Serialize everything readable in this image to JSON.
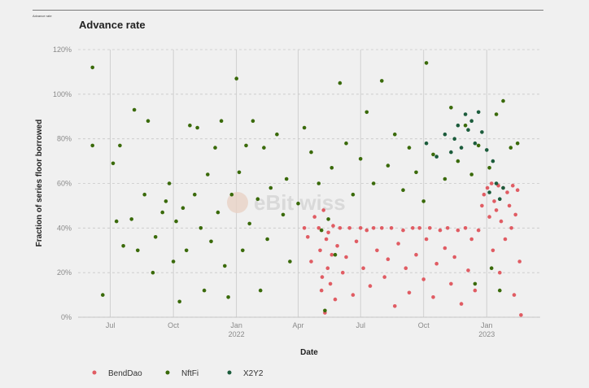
{
  "header": {
    "caption": "Advance rate",
    "title": "Advance rate"
  },
  "watermark": {
    "text": "eBit wiss"
  },
  "colors": {
    "BendDao": "#e05c63",
    "NftFi": "#3a6a0a",
    "X2Y2": "#1c5c3c"
  },
  "chart_data": {
    "type": "scatter",
    "title": "Advance rate",
    "xlabel": "Date",
    "ylabel": "Fraction of series floor borrowed",
    "xlim": [
      "2021-05-15",
      "2023-03-20"
    ],
    "ylim": [
      0,
      120
    ],
    "y_ticks": [
      "0%",
      "20%",
      "40%",
      "60%",
      "80%",
      "100%",
      "120%"
    ],
    "x_ticks": [
      {
        "date": "2021-07-01",
        "label": "Jul",
        "sub": ""
      },
      {
        "date": "2021-10-01",
        "label": "Oct",
        "sub": ""
      },
      {
        "date": "2022-01-01",
        "label": "Jan",
        "sub": "2022"
      },
      {
        "date": "2022-04-01",
        "label": "Apr",
        "sub": ""
      },
      {
        "date": "2022-07-01",
        "label": "Jul",
        "sub": ""
      },
      {
        "date": "2022-10-01",
        "label": "Oct",
        "sub": ""
      },
      {
        "date": "2023-01-01",
        "label": "Jan",
        "sub": "2023"
      }
    ],
    "grid": true,
    "legend_position": "bottom-left",
    "series": [
      {
        "name": "BendDao",
        "points": [
          [
            "2022-04-10",
            40
          ],
          [
            "2022-04-15",
            36
          ],
          [
            "2022-04-20",
            25
          ],
          [
            "2022-04-25",
            45
          ],
          [
            "2022-05-01",
            40
          ],
          [
            "2022-05-03",
            30
          ],
          [
            "2022-05-05",
            12
          ],
          [
            "2022-05-06",
            18
          ],
          [
            "2022-05-08",
            48
          ],
          [
            "2022-05-10",
            2
          ],
          [
            "2022-05-12",
            35
          ],
          [
            "2022-05-14",
            22
          ],
          [
            "2022-05-15",
            38
          ],
          [
            "2022-05-18",
            15
          ],
          [
            "2022-05-20",
            28
          ],
          [
            "2022-05-22",
            41
          ],
          [
            "2022-05-25",
            8
          ],
          [
            "2022-05-28",
            32
          ],
          [
            "2022-06-01",
            40
          ],
          [
            "2022-06-05",
            20
          ],
          [
            "2022-06-10",
            27
          ],
          [
            "2022-06-15",
            40
          ],
          [
            "2022-06-20",
            10
          ],
          [
            "2022-06-25",
            34
          ],
          [
            "2022-07-01",
            40
          ],
          [
            "2022-07-05",
            22
          ],
          [
            "2022-07-10",
            39
          ],
          [
            "2022-07-15",
            14
          ],
          [
            "2022-07-20",
            40
          ],
          [
            "2022-07-25",
            30
          ],
          [
            "2022-08-01",
            40
          ],
          [
            "2022-08-05",
            18
          ],
          [
            "2022-08-10",
            26
          ],
          [
            "2022-08-15",
            40
          ],
          [
            "2022-08-20",
            5
          ],
          [
            "2022-08-25",
            33
          ],
          [
            "2022-09-01",
            39
          ],
          [
            "2022-09-05",
            22
          ],
          [
            "2022-09-10",
            11
          ],
          [
            "2022-09-15",
            40
          ],
          [
            "2022-09-20",
            28
          ],
          [
            "2022-09-25",
            40
          ],
          [
            "2022-10-01",
            17
          ],
          [
            "2022-10-05",
            35
          ],
          [
            "2022-10-10",
            40
          ],
          [
            "2022-10-15",
            9
          ],
          [
            "2022-10-20",
            24
          ],
          [
            "2022-10-25",
            39
          ],
          [
            "2022-11-01",
            31
          ],
          [
            "2022-11-05",
            40
          ],
          [
            "2022-11-10",
            15
          ],
          [
            "2022-11-15",
            27
          ],
          [
            "2022-11-20",
            39
          ],
          [
            "2022-11-25",
            6
          ],
          [
            "2022-12-01",
            40
          ],
          [
            "2022-12-05",
            21
          ],
          [
            "2022-12-10",
            35
          ],
          [
            "2022-12-15",
            12
          ],
          [
            "2022-12-20",
            39
          ],
          [
            "2022-12-25",
            50
          ],
          [
            "2022-12-28",
            55
          ],
          [
            "2023-01-02",
            58
          ],
          [
            "2023-01-05",
            45
          ],
          [
            "2023-01-08",
            60
          ],
          [
            "2023-01-10",
            30
          ],
          [
            "2023-01-12",
            52
          ],
          [
            "2023-01-15",
            48
          ],
          [
            "2023-01-18",
            59
          ],
          [
            "2023-01-20",
            20
          ],
          [
            "2023-01-22",
            43
          ],
          [
            "2023-01-25",
            58
          ],
          [
            "2023-01-28",
            35
          ],
          [
            "2023-01-31",
            56
          ],
          [
            "2023-02-03",
            50
          ],
          [
            "2023-02-06",
            40
          ],
          [
            "2023-02-08",
            59
          ],
          [
            "2023-02-10",
            10
          ],
          [
            "2023-02-12",
            46
          ],
          [
            "2023-02-15",
            57
          ],
          [
            "2023-02-18",
            25
          ],
          [
            "2023-02-20",
            1
          ]
        ]
      },
      {
        "name": "NftFi",
        "points": [
          [
            "2021-06-05",
            112
          ],
          [
            "2021-06-05",
            77
          ],
          [
            "2021-06-20",
            10
          ],
          [
            "2021-07-05",
            69
          ],
          [
            "2021-07-10",
            43
          ],
          [
            "2021-07-15",
            77
          ],
          [
            "2021-07-20",
            32
          ],
          [
            "2021-08-01",
            44
          ],
          [
            "2021-08-05",
            93
          ],
          [
            "2021-08-10",
            30
          ],
          [
            "2021-08-20",
            55
          ],
          [
            "2021-08-25",
            88
          ],
          [
            "2021-09-01",
            20
          ],
          [
            "2021-09-05",
            36
          ],
          [
            "2021-09-15",
            47
          ],
          [
            "2021-09-20",
            52
          ],
          [
            "2021-09-25",
            60
          ],
          [
            "2021-10-01",
            25
          ],
          [
            "2021-10-05",
            43
          ],
          [
            "2021-10-10",
            7
          ],
          [
            "2021-10-15",
            49
          ],
          [
            "2021-10-20",
            30
          ],
          [
            "2021-10-25",
            86
          ],
          [
            "2021-11-01",
            55
          ],
          [
            "2021-11-05",
            85
          ],
          [
            "2021-11-10",
            40
          ],
          [
            "2021-11-15",
            12
          ],
          [
            "2021-11-20",
            64
          ],
          [
            "2021-11-25",
            34
          ],
          [
            "2021-12-01",
            76
          ],
          [
            "2021-12-05",
            47
          ],
          [
            "2021-12-10",
            88
          ],
          [
            "2021-12-15",
            23
          ],
          [
            "2021-12-20",
            9
          ],
          [
            "2021-12-25",
            55
          ],
          [
            "2022-01-01",
            107
          ],
          [
            "2022-01-05",
            65
          ],
          [
            "2022-01-10",
            30
          ],
          [
            "2022-01-15",
            77
          ],
          [
            "2022-01-20",
            42
          ],
          [
            "2022-01-25",
            88
          ],
          [
            "2022-02-01",
            53
          ],
          [
            "2022-02-05",
            12
          ],
          [
            "2022-02-10",
            76
          ],
          [
            "2022-02-15",
            35
          ],
          [
            "2022-02-20",
            58
          ],
          [
            "2022-03-01",
            82
          ],
          [
            "2022-03-10",
            46
          ],
          [
            "2022-03-15",
            62
          ],
          [
            "2022-03-20",
            25
          ],
          [
            "2022-04-01",
            51
          ],
          [
            "2022-04-10",
            85
          ],
          [
            "2022-04-20",
            74
          ],
          [
            "2022-05-01",
            60
          ],
          [
            "2022-05-10",
            3
          ],
          [
            "2022-05-20",
            67
          ],
          [
            "2022-06-01",
            105
          ],
          [
            "2022-06-10",
            78
          ],
          [
            "2022-06-20",
            55
          ],
          [
            "2022-07-01",
            71
          ],
          [
            "2022-07-10",
            92
          ],
          [
            "2022-07-20",
            60
          ],
          [
            "2022-08-01",
            106
          ],
          [
            "2022-08-10",
            68
          ],
          [
            "2022-08-20",
            82
          ],
          [
            "2022-09-01",
            57
          ],
          [
            "2022-09-10",
            76
          ],
          [
            "2022-09-20",
            65
          ],
          [
            "2022-10-01",
            52
          ],
          [
            "2022-10-05",
            114
          ],
          [
            "2022-10-15",
            73
          ],
          [
            "2022-11-01",
            62
          ],
          [
            "2022-11-10",
            94
          ],
          [
            "2022-11-20",
            70
          ],
          [
            "2022-12-01",
            86
          ],
          [
            "2022-12-10",
            64
          ],
          [
            "2022-12-20",
            77
          ],
          [
            "2023-01-05",
            67
          ],
          [
            "2023-01-15",
            91
          ],
          [
            "2023-01-25",
            97
          ],
          [
            "2023-02-05",
            76
          ],
          [
            "2023-02-15",
            78
          ],
          [
            "2022-05-05",
            39
          ],
          [
            "2022-05-15",
            44
          ],
          [
            "2022-05-25",
            28
          ],
          [
            "2022-12-15",
            15
          ],
          [
            "2023-01-08",
            22
          ],
          [
            "2023-01-20",
            12
          ]
        ]
      },
      {
        "name": "X2Y2",
        "points": [
          [
            "2022-10-05",
            78
          ],
          [
            "2022-10-20",
            72
          ],
          [
            "2022-11-01",
            82
          ],
          [
            "2022-11-10",
            74
          ],
          [
            "2022-11-15",
            80
          ],
          [
            "2022-11-20",
            86
          ],
          [
            "2022-11-25",
            76
          ],
          [
            "2022-12-01",
            91
          ],
          [
            "2022-12-05",
            84
          ],
          [
            "2022-12-10",
            88
          ],
          [
            "2022-12-15",
            78
          ],
          [
            "2022-12-20",
            92
          ],
          [
            "2022-12-25",
            83
          ],
          [
            "2023-01-01",
            75
          ],
          [
            "2023-01-05",
            56
          ],
          [
            "2023-01-10",
            70
          ],
          [
            "2023-01-15",
            60
          ],
          [
            "2023-01-20",
            53
          ],
          [
            "2023-01-25",
            58
          ]
        ]
      }
    ]
  }
}
